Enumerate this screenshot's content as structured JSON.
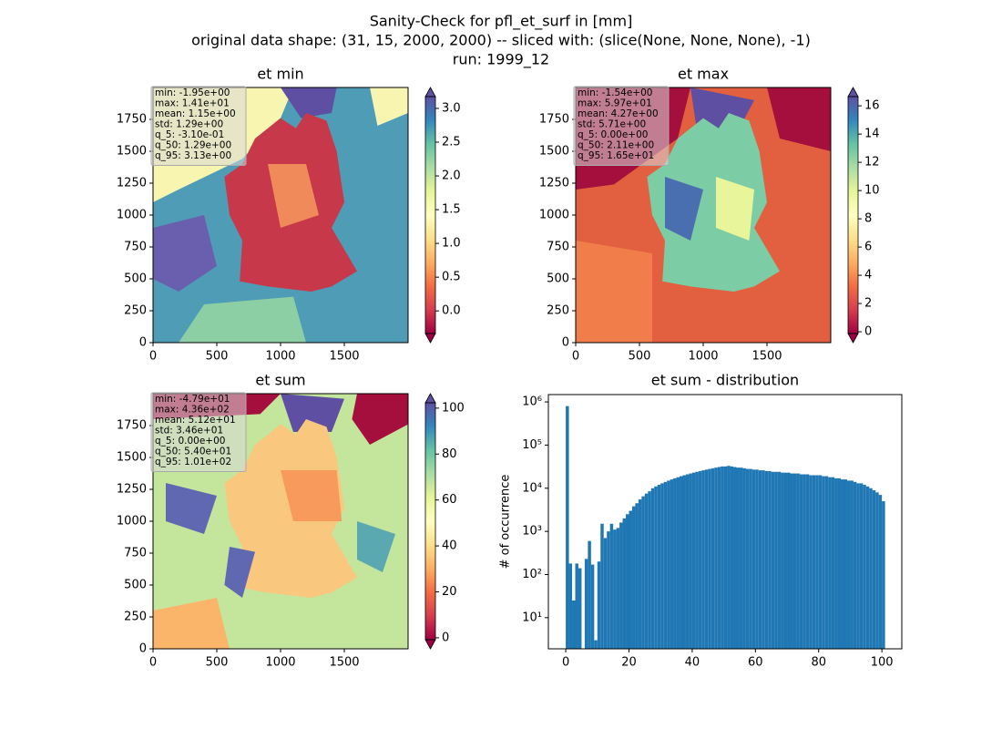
{
  "suptitle": [
    "Sanity-Check for pfl_et_surf in [mm]",
    "original data shape: (31, 15, 2000, 2000) -- sliced with: (slice(None, None, None), -1)",
    "run: 1999_12"
  ],
  "chart_data": [
    {
      "type": "heatmap",
      "title": "et min",
      "xlim": [
        0,
        2000
      ],
      "xticks": [
        0,
        500,
        1000,
        1500
      ],
      "ylim": [
        0,
        2000
      ],
      "yticks": [
        0,
        250,
        500,
        750,
        1000,
        1250,
        1500,
        1750
      ],
      "colorbar_lim": [
        -0.47,
        3.31
      ],
      "colorbar_ticks": [
        {
          "value": 0,
          "label": "0.0"
        },
        {
          "value": 0.5,
          "label": "0.5"
        },
        {
          "value": 1,
          "label": "1.0"
        },
        {
          "value": 1.5,
          "label": "1.5"
        },
        {
          "value": 2,
          "label": "2.0"
        },
        {
          "value": 2.5,
          "label": "2.5"
        },
        {
          "value": 3,
          "label": "3.0"
        }
      ],
      "colormap": [
        "#9e0142",
        "#d53e4f",
        "#f46d43",
        "#fdae61",
        "#fee08b",
        "#ffffbf",
        "#e6f598",
        "#abdda4",
        "#66c2a5",
        "#3288bd",
        "#5e4fa2"
      ],
      "annotation": [
        "min: -1.95e+00",
        "max: 1.41e+01",
        "mean: 1.15e+00",
        "std: 1.29e+00",
        "q_5: -3.10e-01",
        "q_50: 1.29e+00",
        "q_95: 3.13e+00"
      ]
    },
    {
      "type": "heatmap",
      "title": "et max",
      "xlim": [
        0,
        2000
      ],
      "xticks": [
        0,
        500,
        1000,
        1500
      ],
      "ylim": [
        0,
        2000
      ],
      "yticks": [
        0,
        250,
        500,
        750,
        1000,
        1250,
        1500,
        1750
      ],
      "colorbar_lim": [
        -0.77,
        17.3
      ],
      "colorbar_ticks": [
        0,
        2,
        4,
        6,
        8,
        10,
        12,
        14,
        16
      ],
      "colormap": [
        "#9e0142",
        "#d53e4f",
        "#f46d43",
        "#fdae61",
        "#fee08b",
        "#ffffbf",
        "#e6f598",
        "#abdda4",
        "#66c2a5",
        "#3288bd",
        "#5e4fa2"
      ],
      "annotation": [
        "min: -1.54e+00",
        "max: 5.97e+01",
        "mean: 4.27e+00",
        "std: 5.71e+00",
        "q_5: 0.00e+00",
        "q_50: 2.11e+00",
        "q_95: 1.65e+01"
      ]
    },
    {
      "type": "heatmap",
      "title": "et sum",
      "xlim": [
        0,
        2000
      ],
      "xticks": [
        0,
        500,
        1000,
        1500
      ],
      "ylim": [
        0,
        2000
      ],
      "yticks": [
        0,
        250,
        500,
        750,
        1000,
        1250,
        1500,
        1750
      ],
      "colorbar_lim": [
        -4.8,
        106.3
      ],
      "colorbar_ticks": [
        0,
        20,
        40,
        60,
        80,
        100
      ],
      "colormap": [
        "#9e0142",
        "#d53e4f",
        "#f46d43",
        "#fdae61",
        "#fee08b",
        "#ffffbf",
        "#e6f598",
        "#abdda4",
        "#66c2a5",
        "#3288bd",
        "#5e4fa2"
      ],
      "annotation": [
        "min: -4.79e+01",
        "max: 4.36e+02",
        "mean: 5.12e+01",
        "std: 3.46e+01",
        "q_5: 0.00e+00",
        "q_50: 5.40e+01",
        "q_95: 1.01e+02"
      ]
    },
    {
      "type": "histogram",
      "title": "et sum - distribution",
      "y_label": "# of occurrence",
      "color": "#1f77b4",
      "log_y": true,
      "xlim": [
        -5.5,
        106.3
      ],
      "xticks": [
        0,
        20,
        40,
        60,
        80,
        100
      ],
      "ylim": [
        1.9,
        1480000
      ],
      "yticks": [
        {
          "value": 10,
          "label": "10¹"
        },
        {
          "value": 100,
          "label": "10²"
        },
        {
          "value": 1000,
          "label": "10³"
        },
        {
          "value": 10000,
          "label": "10⁴"
        },
        {
          "value": 100000,
          "label": "10⁵"
        },
        {
          "value": 1000000,
          "label": "10⁶"
        }
      ],
      "bins": [
        0,
        1,
        2,
        3,
        4,
        5,
        6,
        7,
        8,
        9,
        10,
        11,
        12,
        13,
        14,
        15,
        16,
        17,
        18,
        19,
        20,
        21,
        22,
        23,
        24,
        25,
        26,
        27,
        28,
        29,
        30,
        31,
        32,
        33,
        34,
        35,
        36,
        37,
        38,
        39,
        40,
        41,
        42,
        43,
        44,
        45,
        46,
        47,
        48,
        49,
        50,
        51,
        52,
        53,
        54,
        55,
        56,
        57,
        58,
        59,
        60,
        61,
        62,
        63,
        64,
        65,
        66,
        67,
        68,
        69,
        70,
        71,
        72,
        73,
        74,
        75,
        76,
        77,
        78,
        79,
        80,
        81,
        82,
        83,
        84,
        85,
        86,
        87,
        88,
        89,
        90,
        91,
        92,
        93,
        94,
        95,
        96,
        97,
        98,
        99,
        100,
        101
      ],
      "values": [
        800000,
        180,
        25,
        180,
        140,
        0,
        230,
        600,
        170,
        3,
        200,
        1500,
        700,
        1000,
        1500,
        1100,
        1200,
        1600,
        2000,
        2500,
        3000,
        3800,
        4500,
        5500,
        6500,
        7500,
        8500,
        10000,
        11000,
        12000,
        13000,
        14000,
        15000,
        16000,
        17000,
        18000,
        19000,
        20000,
        21000,
        22000,
        23000,
        24000,
        25000,
        26000,
        27000,
        28000,
        29000,
        30000,
        31000,
        32000,
        32000,
        33000,
        32000,
        31000,
        30000,
        30000,
        29000,
        28000,
        28000,
        27000,
        27000,
        26000,
        26000,
        25000,
        25000,
        24000,
        24000,
        24000,
        23000,
        23000,
        23000,
        22000,
        22000,
        22000,
        21000,
        21000,
        21000,
        20000,
        20000,
        20000,
        20000,
        19000,
        19000,
        18000,
        18000,
        17000,
        17000,
        16000,
        16000,
        15000,
        15000,
        14000,
        13000,
        13000,
        12000,
        11000,
        10000,
        9000,
        8000,
        7000,
        5000
      ]
    }
  ]
}
